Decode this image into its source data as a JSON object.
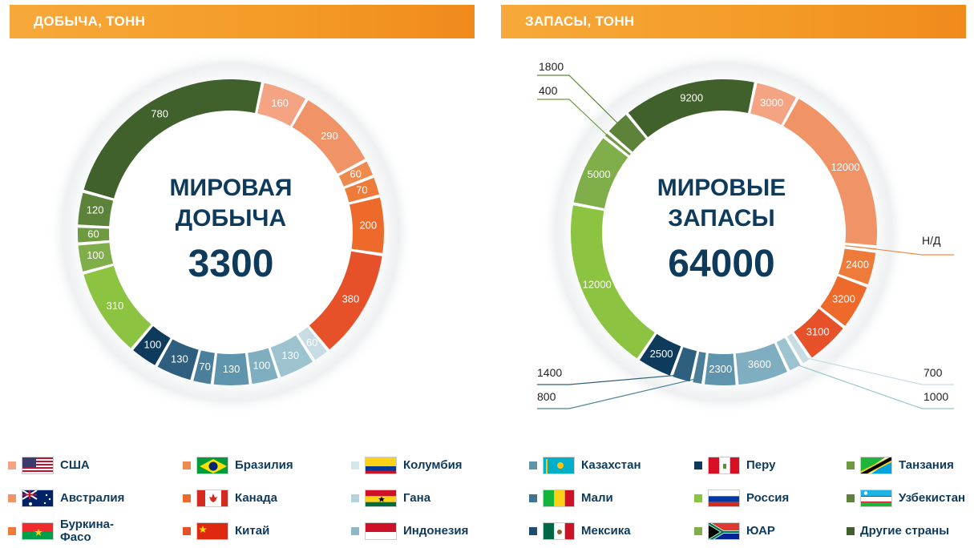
{
  "headers": {
    "left": "ДОБЫЧА, ТОНН",
    "right": "ЗАПАСЫ, ТОНН"
  },
  "chart_data": [
    {
      "type": "pie",
      "title": "ДОБЫЧА, ТОНН",
      "center": [
        "МИРОВАЯ",
        "ДОБЫЧА",
        "3300"
      ],
      "slices": [
        {
          "country": "США",
          "value": "160",
          "color": "#f4a383"
        },
        {
          "country": "Австралия",
          "value": "290",
          "color": "#f09468"
        },
        {
          "country": "Бразилия",
          "value": "60",
          "color": "#ef8a4e"
        },
        {
          "country": "Канада",
          "value": "70",
          "color": "#ef7b3a"
        },
        {
          "country": "Китай",
          "value": "200",
          "color": "#ee6a2a"
        },
        {
          "country": "Буркина-Фасо",
          "value": "380",
          "color": "#e6512a"
        },
        {
          "country": "Колумбия",
          "value": "60",
          "color": "#c7dde3"
        },
        {
          "country": "Гана",
          "value": "130",
          "color": "#9cc3cf"
        },
        {
          "country": "Индонезия",
          "value": "100",
          "color": "#7eaec0"
        },
        {
          "country": "Казахстан",
          "value": "130",
          "color": "#5f95ac"
        },
        {
          "country": "Мали",
          "value": "70",
          "color": "#4b7f99"
        },
        {
          "country": "Мексика",
          "value": "130",
          "color": "#2f5f7e"
        },
        {
          "country": "Перу",
          "value": "100",
          "color": "#0e3a5c"
        },
        {
          "country": "Россия",
          "value": "310",
          "color": "#8cc341"
        },
        {
          "country": "ЮАР",
          "value": "100",
          "color": "#7fae4a"
        },
        {
          "country": "Танзания",
          "value": "60",
          "color": "#6e9a40"
        },
        {
          "country": "Узбекистан",
          "value": "120",
          "color": "#5d833a"
        },
        {
          "country": "Другие страны",
          "value": "780",
          "color": "#40612c"
        }
      ]
    },
    {
      "type": "pie",
      "title": "ЗАПАСЫ, ТОНН",
      "center": [
        "МИРОВЫЕ",
        "ЗАПАСЫ",
        "64000"
      ],
      "slices": [
        {
          "country": "США",
          "value": "3000",
          "color": "#f4a383"
        },
        {
          "country": "Австралия",
          "value": "12000",
          "color": "#f09468"
        },
        {
          "country": "Бразилия",
          "value": "Н/Д",
          "color": "#ef8a4e",
          "callout": true
        },
        {
          "country": "Канада",
          "value": "2400",
          "color": "#ef7b3a"
        },
        {
          "country": "Китай",
          "value": "3200",
          "color": "#ee6a2a"
        },
        {
          "country": "Буркина-Фасо",
          "value": "3100",
          "color": "#e6512a"
        },
        {
          "country": "Колумбия",
          "value": "700",
          "color": "#c7dde3",
          "callout": true
        },
        {
          "country": "Гана",
          "value": "1000",
          "color": "#9cc3cf",
          "callout": true
        },
        {
          "country": "Индонезия",
          "value": "3600",
          "color": "#7eaec0"
        },
        {
          "country": "Казахстан",
          "value": "2300",
          "color": "#5f95ac"
        },
        {
          "country": "Мали",
          "value": "800",
          "color": "#4b7f99",
          "callout": true
        },
        {
          "country": "Мексика",
          "value": "1400",
          "color": "#2f5f7e",
          "callout": true
        },
        {
          "country": "Перу",
          "value": "2500",
          "color": "#0e3a5c"
        },
        {
          "country": "Россия",
          "value": "12000",
          "color": "#8cc341"
        },
        {
          "country": "ЮАР",
          "value": "5000",
          "color": "#7fae4a"
        },
        {
          "country": "Танзания",
          "value": "400",
          "color": "#6e9a40",
          "callout": true
        },
        {
          "country": "Узбекистан",
          "value": "1800",
          "color": "#5d833a",
          "callout": true
        },
        {
          "country": "Другие страны",
          "value": "9200",
          "color": "#40612c"
        }
      ]
    }
  ],
  "legend": [
    {
      "label": "США",
      "color": "#f4a383",
      "flag": "us-flag-icon"
    },
    {
      "label": "Австралия",
      "color": "#f09468",
      "flag": "au-flag-icon"
    },
    {
      "label": "Буркина-\nФасо",
      "color": "#ef7b3a",
      "flag": "bf-flag-icon"
    },
    {
      "label": "Бразилия",
      "color": "#ef8a4e",
      "flag": "br-flag-icon"
    },
    {
      "label": "Канада",
      "color": "#ee6a2a",
      "flag": "ca-flag-icon"
    },
    {
      "label": "Китай",
      "color": "#e6512a",
      "flag": "cn-flag-icon"
    },
    {
      "label": "Колумбия",
      "color": "#d3e6ea",
      "flag": "co-flag-icon"
    },
    {
      "label": "Гана",
      "color": "#b5d3db",
      "flag": "gh-flag-icon"
    },
    {
      "label": "Индонезия",
      "color": "#8fb8c6",
      "flag": "id-flag-icon"
    },
    {
      "label": "Казахстан",
      "color": "#5f95ac",
      "flag": "kz-flag-icon"
    },
    {
      "label": "Мали",
      "color": "#3f7591",
      "flag": "ml-flag-icon"
    },
    {
      "label": "Мексика",
      "color": "#1f4d6e",
      "flag": "mx-flag-icon"
    },
    {
      "label": "Перу",
      "color": "#0e3a5c",
      "flag": "pe-flag-icon"
    },
    {
      "label": "Россия",
      "color": "#8cc341",
      "flag": "ru-flag-icon"
    },
    {
      "label": "ЮАР",
      "color": "#7fae4a",
      "flag": "za-flag-icon"
    },
    {
      "label": "Танзания",
      "color": "#6e9a40",
      "flag": "tz-flag-icon"
    },
    {
      "label": "Узбекистан",
      "color": "#5d833a",
      "flag": "uz-flag-icon"
    },
    {
      "label": "Другие страны",
      "color": "#40612c",
      "flag": ""
    }
  ]
}
